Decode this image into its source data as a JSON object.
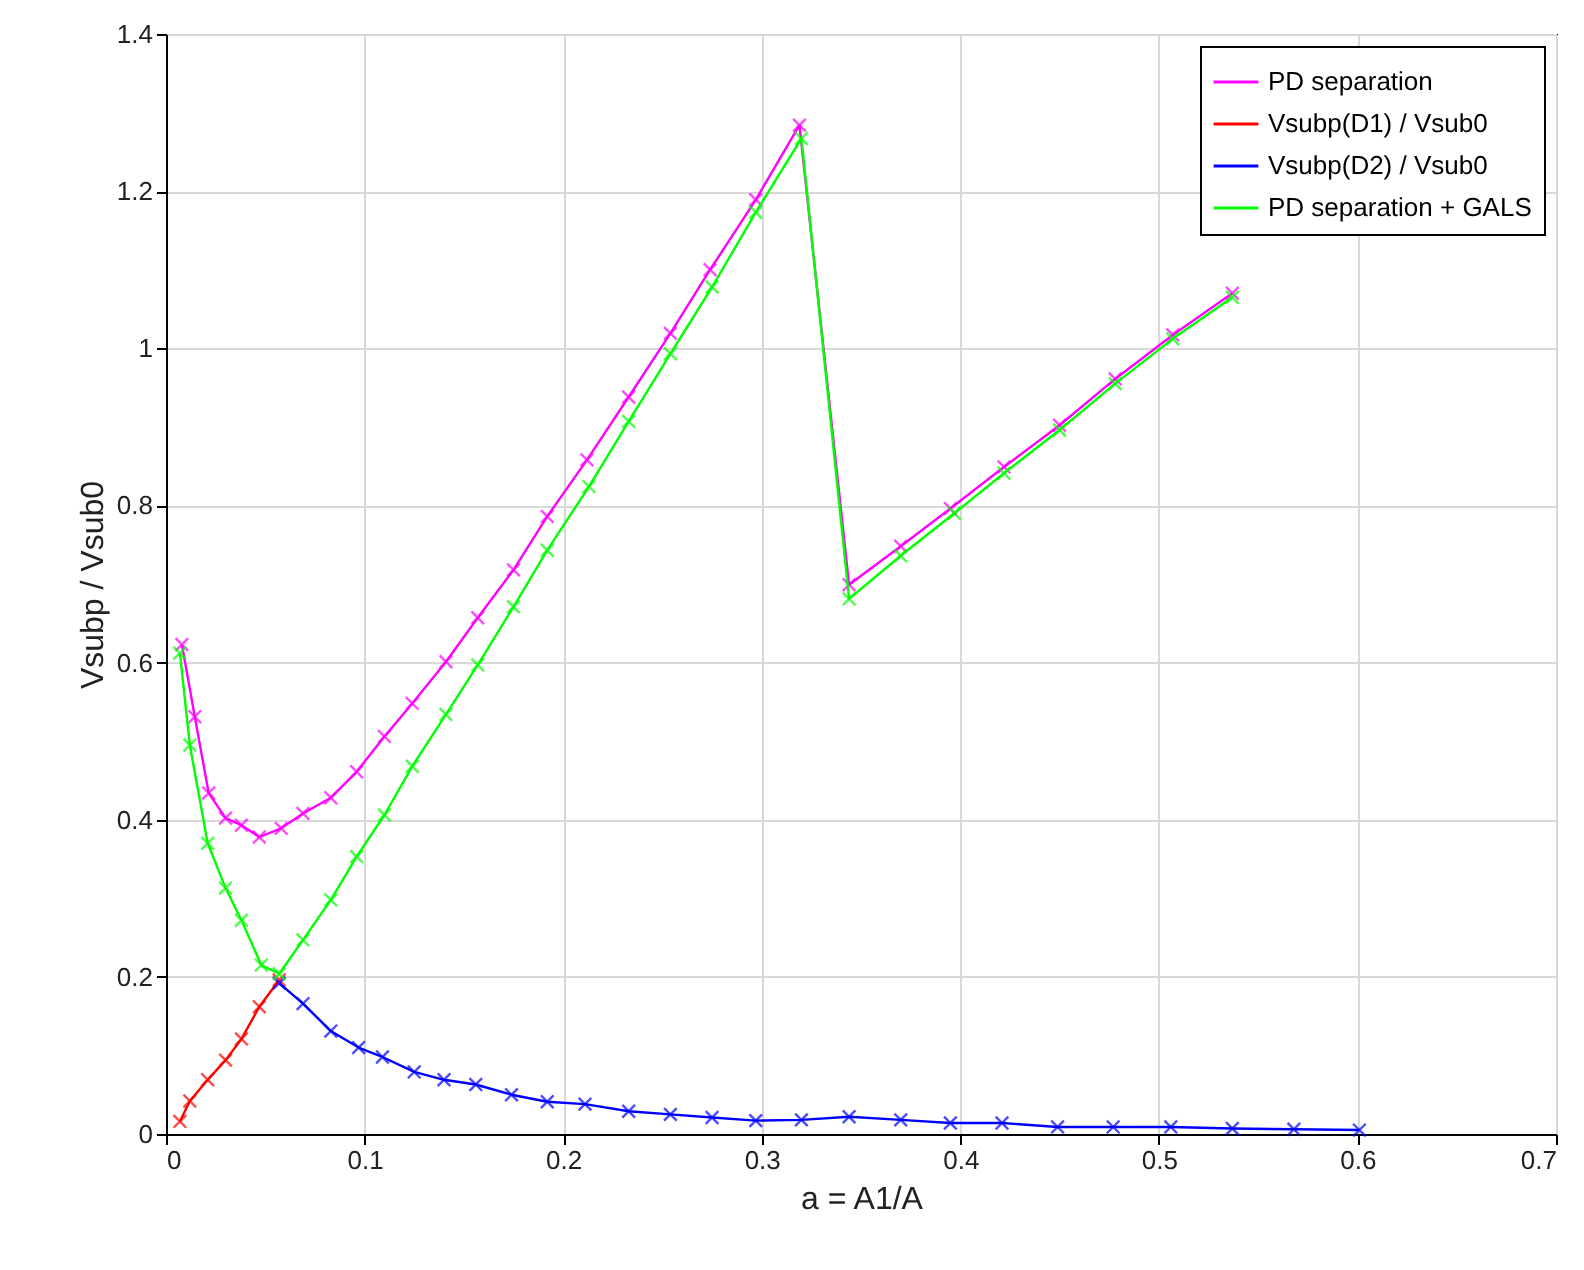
{
  "chart_data": {
    "type": "line",
    "xlabel": "a = A1/A",
    "ylabel": "Vsubp / Vsub0",
    "xlim": [
      0,
      0.7
    ],
    "ylim": [
      0,
      1.4
    ],
    "xticks": [
      0,
      0.1,
      0.2,
      0.3,
      0.4,
      0.5,
      0.6,
      0.7
    ],
    "yticks": [
      0,
      0.2,
      0.4,
      0.6,
      0.8,
      1,
      1.2,
      1.4
    ],
    "grid": true,
    "legend": "top right",
    "marker": "cross",
    "line_style": "solid",
    "series": [
      {
        "name": "PD separation",
        "color": "#ff00ff",
        "x": [
          0.008,
          0.0145,
          0.0215,
          0.03,
          0.038,
          0.047,
          0.058,
          0.069,
          0.083,
          0.096,
          0.11,
          0.124,
          0.141,
          0.157,
          0.175,
          0.192,
          0.212,
          0.233,
          0.254,
          0.274,
          0.297,
          0.319,
          0.344,
          0.37,
          0.395,
          0.422,
          0.45,
          0.478,
          0.507,
          0.537
        ],
        "values": [
          0.623,
          0.531,
          0.434,
          0.402,
          0.393,
          0.378,
          0.389,
          0.408,
          0.428,
          0.461,
          0.506,
          0.548,
          0.601,
          0.657,
          0.718,
          0.786,
          0.858,
          0.938,
          1.019,
          1.1,
          1.189,
          1.284,
          0.699,
          0.748,
          0.796,
          0.849,
          0.902,
          0.961,
          1.017,
          1.07
        ]
      },
      {
        "name": "Vsubp(D1) / Vsub0",
        "color": "#ff0000",
        "x": [
          0.007,
          0.012,
          0.021,
          0.03,
          0.038,
          0.047,
          0.057
        ],
        "values": [
          0.016,
          0.042,
          0.069,
          0.094,
          0.121,
          0.162,
          0.196
        ]
      },
      {
        "name": "Vsubp(D2) / Vsub0",
        "color": "#0000ff",
        "x": [
          0.057,
          0.069,
          0.083,
          0.097,
          0.109,
          0.125,
          0.14,
          0.156,
          0.174,
          0.192,
          0.211,
          0.233,
          0.254,
          0.275,
          0.297,
          0.32,
          0.344,
          0.37,
          0.395,
          0.421,
          0.449,
          0.477,
          0.506,
          0.537,
          0.568,
          0.601
        ],
        "values": [
          0.192,
          0.166,
          0.131,
          0.11,
          0.098,
          0.079,
          0.069,
          0.063,
          0.05,
          0.041,
          0.038,
          0.029,
          0.025,
          0.021,
          0.017,
          0.018,
          0.022,
          0.018,
          0.014,
          0.014,
          0.009,
          0.009,
          0.009,
          0.007,
          0.006,
          0.005
        ]
      },
      {
        "name": "PD separation + GALS",
        "color": "#00ff00",
        "x": [
          0.007,
          0.012,
          0.021,
          0.03,
          0.038,
          0.048,
          0.057,
          0.069,
          0.083,
          0.096,
          0.11,
          0.124,
          0.141,
          0.157,
          0.175,
          0.192,
          0.213,
          0.233,
          0.254,
          0.275,
          0.297,
          0.32,
          0.344,
          0.37,
          0.397,
          0.422,
          0.45,
          0.478,
          0.507,
          0.537
        ],
        "values": [
          0.612,
          0.495,
          0.37,
          0.313,
          0.272,
          0.215,
          0.204,
          0.247,
          0.298,
          0.353,
          0.406,
          0.468,
          0.534,
          0.597,
          0.671,
          0.743,
          0.824,
          0.907,
          0.993,
          1.078,
          1.173,
          1.267,
          0.681,
          0.736,
          0.79,
          0.841,
          0.896,
          0.955,
          1.012,
          1.065
        ]
      }
    ]
  }
}
